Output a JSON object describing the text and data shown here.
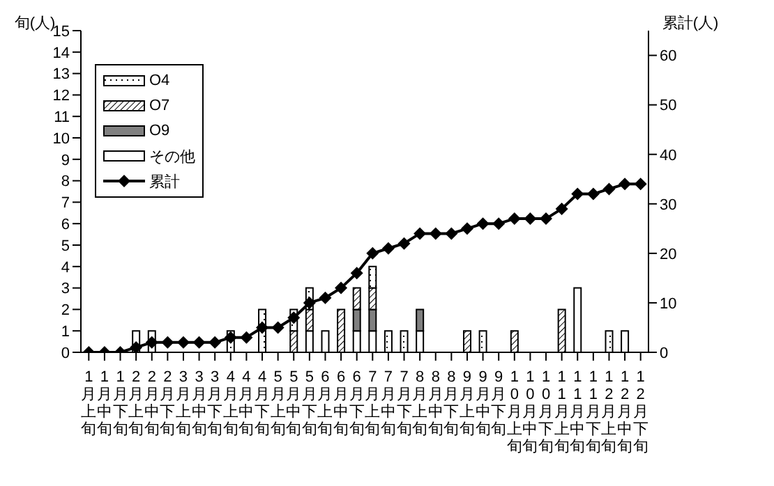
{
  "chart_data": {
    "type": "bar",
    "stacked": true,
    "ylabel": "旬(人)",
    "y2label": "累計(人)",
    "categories": [
      "1月上旬",
      "1月中旬",
      "1月下旬",
      "2月上旬",
      "2月中旬",
      "2月下旬",
      "3月上旬",
      "3月中旬",
      "3月下旬",
      "4月上旬",
      "4月中旬",
      "4月下旬",
      "5月上旬",
      "5月中旬",
      "5月下旬",
      "6月上旬",
      "6月中旬",
      "6月下旬",
      "7月上旬",
      "7月中旬",
      "7月下旬",
      "8月上旬",
      "8月中旬",
      "8月下旬",
      "9月上旬",
      "9月中旬",
      "9月下旬",
      "10月上旬",
      "10月中旬",
      "10月下旬",
      "11月上旬",
      "11月中旬",
      "11月下旬",
      "12月上旬",
      "12月中旬",
      "12月下旬"
    ],
    "series": [
      {
        "name": "その他",
        "color": "#ffffff",
        "values": [
          0,
          0,
          0,
          1,
          1,
          0,
          0,
          0,
          0,
          0,
          0,
          0,
          0,
          0,
          1,
          1,
          0,
          1,
          1,
          0,
          0,
          1,
          0,
          0,
          0,
          0,
          0,
          0,
          0,
          0,
          0,
          3,
          0,
          0,
          1,
          0
        ]
      },
      {
        "name": "O9",
        "color": "#808080",
        "values": [
          0,
          0,
          0,
          0,
          0,
          0,
          0,
          0,
          0,
          0,
          0,
          0,
          0,
          0,
          0,
          0,
          0,
          1,
          1,
          0,
          0,
          1,
          0,
          0,
          0,
          0,
          0,
          0,
          0,
          0,
          0,
          0,
          0,
          0,
          0,
          0
        ]
      },
      {
        "name": "O7",
        "color": "#000000",
        "values": [
          0,
          0,
          0,
          0,
          0,
          0,
          0,
          0,
          0,
          0,
          0,
          0,
          0,
          1,
          1,
          0,
          2,
          1,
          1,
          0,
          0,
          0,
          0,
          0,
          1,
          0,
          0,
          1,
          0,
          0,
          2,
          0,
          0,
          0,
          0,
          0
        ]
      },
      {
        "name": "O4",
        "color": "#000000",
        "values": [
          0,
          0,
          0,
          0,
          0,
          0,
          0,
          0,
          0,
          1,
          0,
          2,
          0,
          1,
          1,
          0,
          0,
          0,
          1,
          1,
          1,
          0,
          0,
          0,
          0,
          1,
          0,
          0,
          0,
          0,
          0,
          0,
          0,
          1,
          0,
          0
        ]
      },
      {
        "name": "累計",
        "type": "line",
        "axis": "y2",
        "color": "#000000",
        "values": [
          0,
          0,
          0,
          1,
          2,
          2,
          2,
          2,
          2,
          3,
          3,
          5,
          5,
          7,
          10,
          11,
          13,
          16,
          20,
          21,
          22,
          24,
          24,
          24,
          25,
          26,
          26,
          27,
          27,
          27,
          29,
          32,
          32,
          33,
          34,
          34
        ]
      }
    ],
    "ylim": [
      0,
      15
    ],
    "yticks": [
      0,
      1,
      2,
      3,
      4,
      5,
      6,
      7,
      8,
      9,
      10,
      11,
      12,
      13,
      14,
      15
    ],
    "y2lim": [
      0,
      65
    ],
    "y2ticks": [
      0,
      10,
      20,
      30,
      40,
      50,
      60
    ],
    "legend": "top left",
    "marker": "diamond",
    "line_style": "solid"
  }
}
